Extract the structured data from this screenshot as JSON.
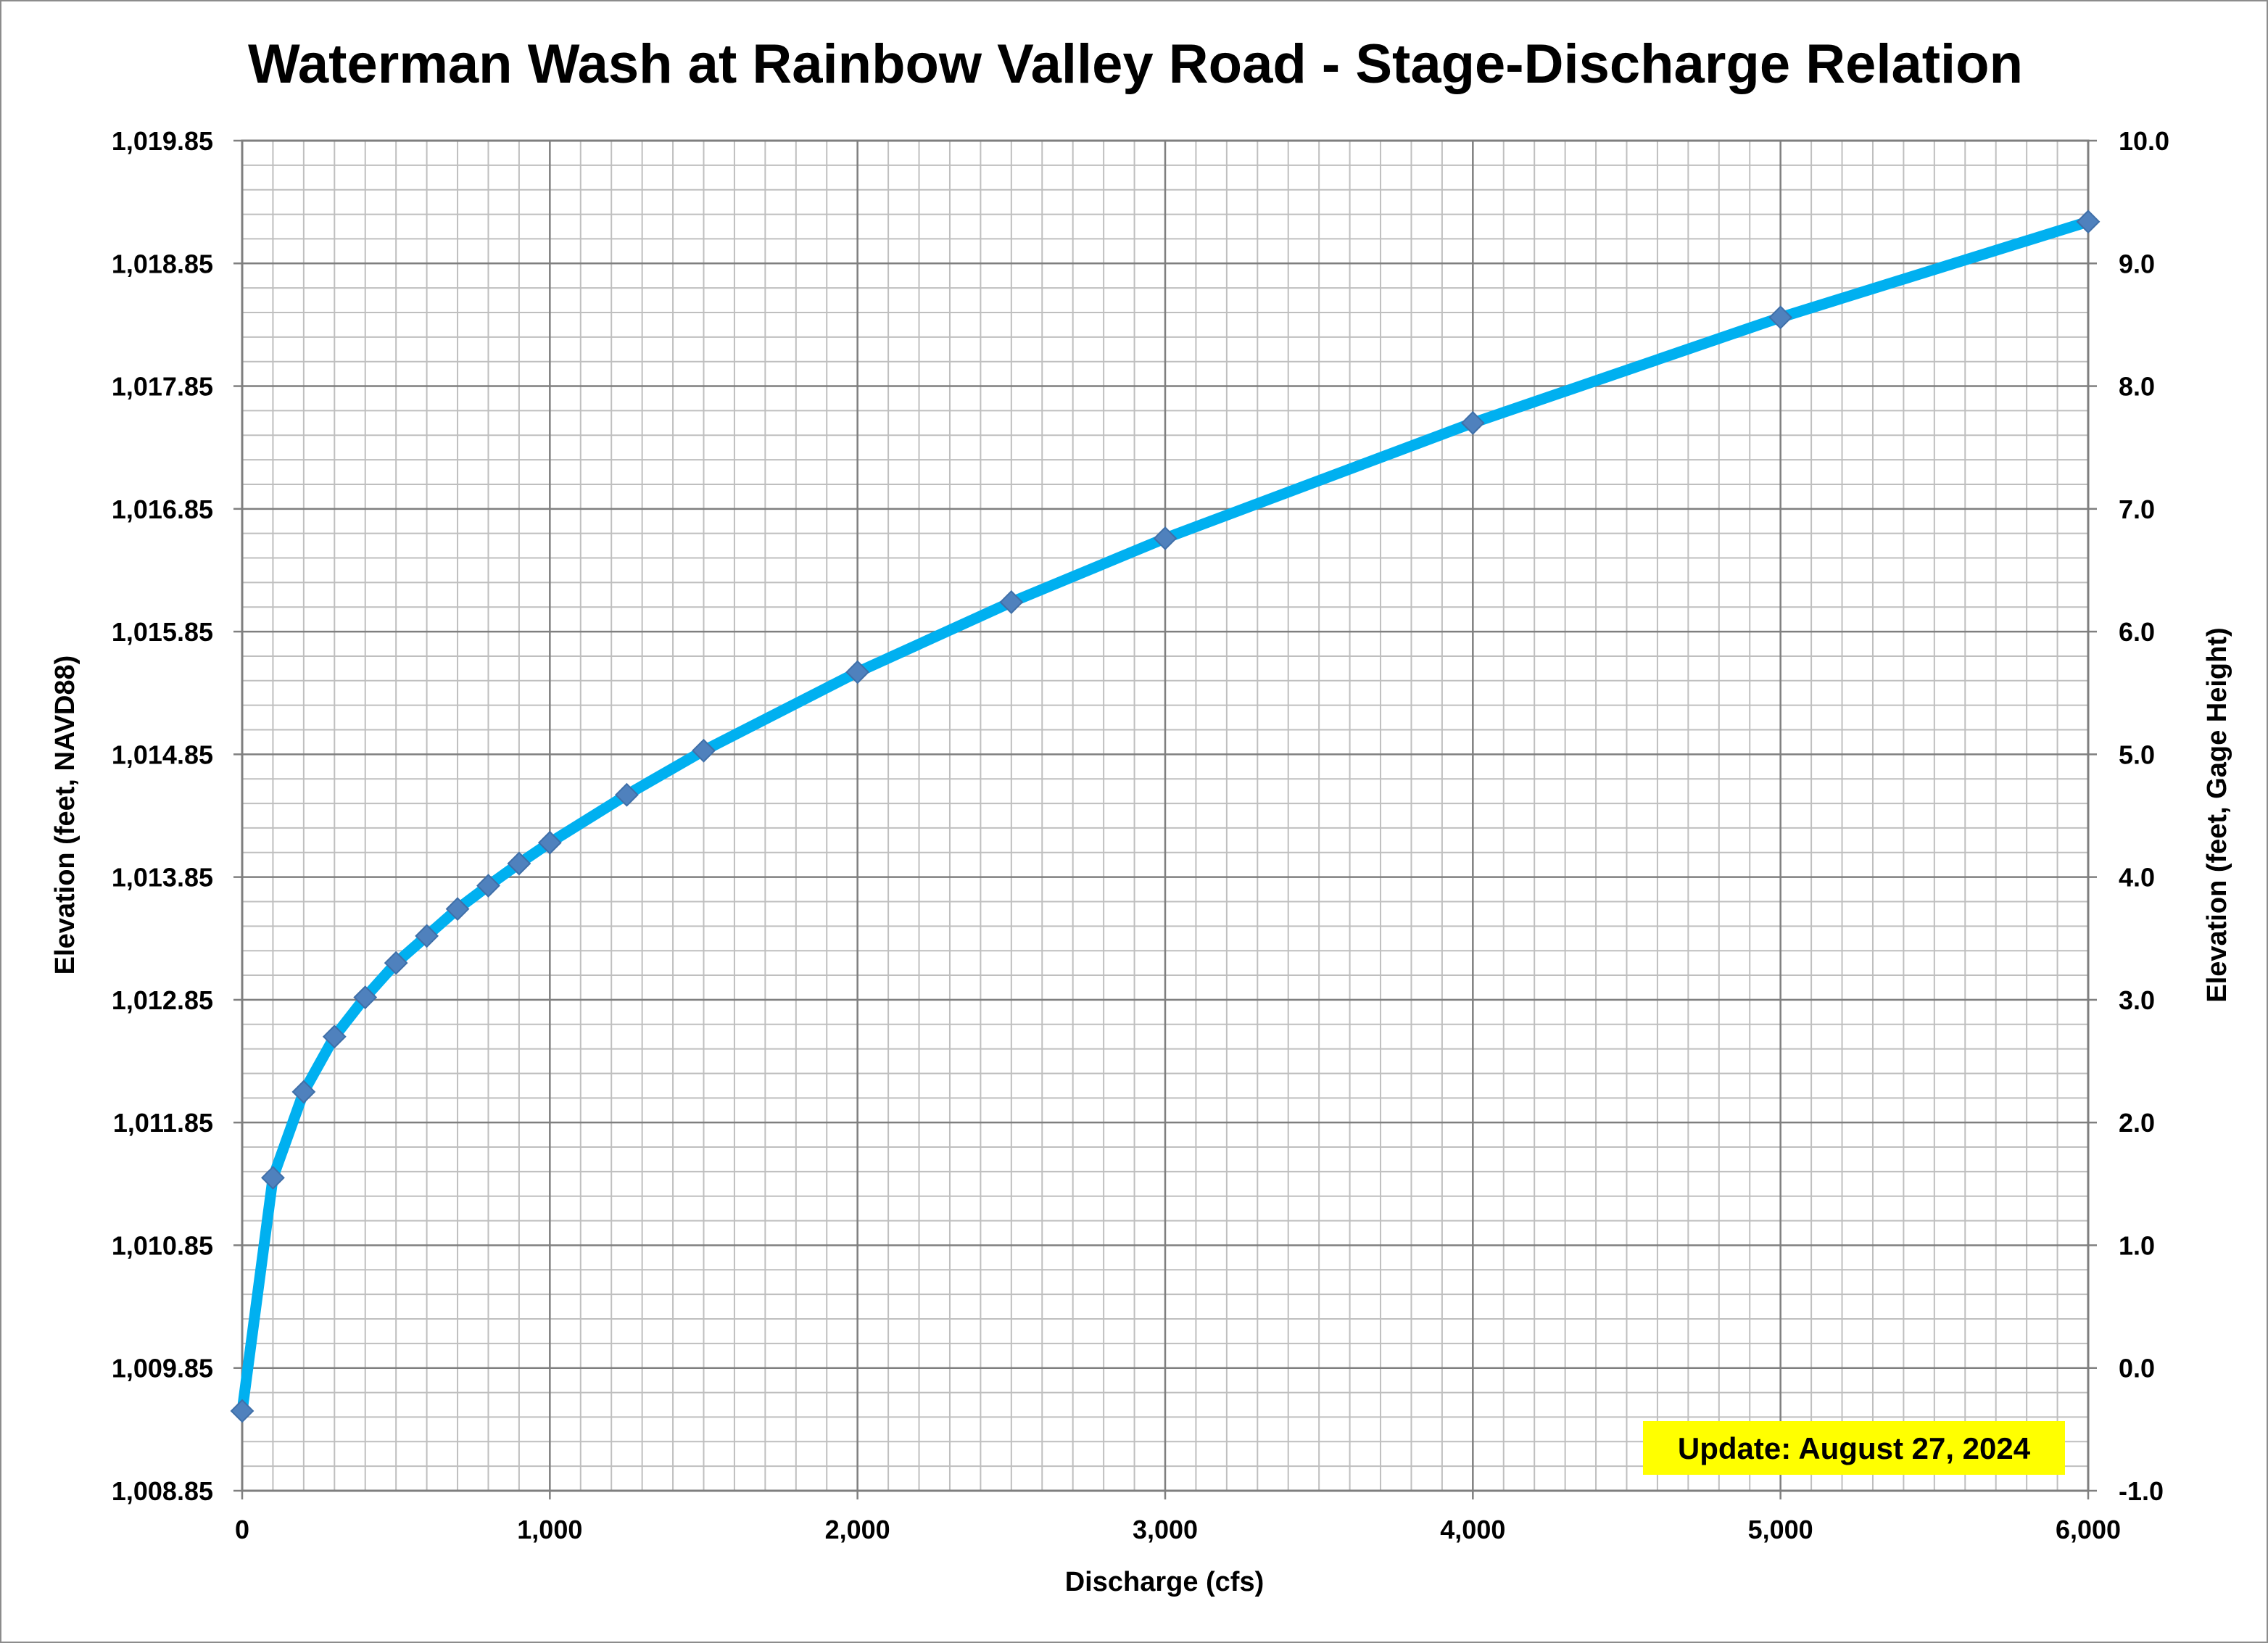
{
  "chart_data": {
    "type": "line",
    "title": "Waterman Wash at Rainbow Valley Road - Stage-Discharge Relation",
    "xlabel": "Discharge (cfs)",
    "ylabel": "Elevation (feet, NAVD88)",
    "y2label": "Elevation (feet, Gage Height)",
    "xlim": [
      0,
      6000
    ],
    "ylim": [
      1008.85,
      1019.85
    ],
    "y2lim": [
      -1.0,
      10.0
    ],
    "x_ticks": [
      "0",
      "1,000",
      "2,000",
      "3,000",
      "4,000",
      "5,000",
      "6,000"
    ],
    "y_ticks": [
      "1,008.85",
      "1,009.85",
      "1,010.85",
      "1,011.85",
      "1,012.85",
      "1,013.85",
      "1,014.85",
      "1,015.85",
      "1,016.85",
      "1,017.85",
      "1,018.85",
      "1,019.85"
    ],
    "y2_ticks": [
      "-1.0",
      "0.0",
      "1.0",
      "2.0",
      "3.0",
      "4.0",
      "5.0",
      "6.0",
      "7.0",
      "8.0",
      "9.0",
      "10.0"
    ],
    "grid": true,
    "series": [
      {
        "color": "#00b0f0",
        "marker_color": "#4f81bd",
        "x": [
          0,
          100,
          200,
          300,
          400,
          500,
          600,
          700,
          800,
          900,
          1000,
          1250,
          1500,
          2000,
          2500,
          3000,
          4000,
          5000,
          6000
        ],
        "y": [
          1009.5,
          1011.4,
          1012.1,
          1012.55,
          1012.87,
          1013.15,
          1013.37,
          1013.59,
          1013.78,
          1013.96,
          1014.13,
          1014.52,
          1014.88,
          1015.52,
          1016.09,
          1016.61,
          1017.55,
          1018.41,
          1019.19
        ]
      }
    ],
    "annotations": [
      {
        "text": "Update: August 27, 2024",
        "background": "#ffff00"
      }
    ]
  }
}
